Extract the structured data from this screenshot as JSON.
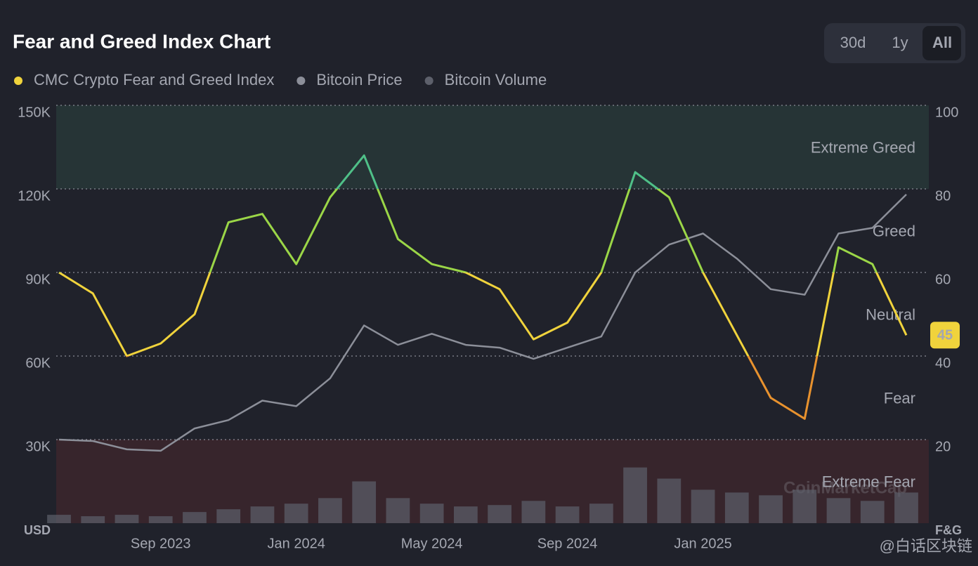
{
  "chart_data": {
    "type": "line",
    "title": "Fear and Greed Index Chart",
    "range_buttons": [
      "30d",
      "1y",
      "All"
    ],
    "active_range": "All",
    "x": [
      "2023-06",
      "2023-07",
      "2023-08",
      "2023-09",
      "2023-10",
      "2023-11",
      "2023-12",
      "2024-01",
      "2024-02",
      "2024-03",
      "2024-04",
      "2024-05",
      "2024-06",
      "2024-07",
      "2024-08",
      "2024-09",
      "2024-10",
      "2024-11",
      "2024-12",
      "2025-01",
      "2025-02",
      "2025-03",
      "2025-04",
      "2025-05",
      "2025-06",
      "2025-07"
    ],
    "xlim": [
      "2023-06",
      "2025-07"
    ],
    "xticks": [
      {
        "value": "2023-09",
        "label": "Sep 2023"
      },
      {
        "value": "2024-01",
        "label": "Jan 2024"
      },
      {
        "value": "2024-05",
        "label": "May 2024"
      },
      {
        "value": "2024-09",
        "label": "Sep 2024"
      },
      {
        "value": "2025-01",
        "label": "Jan 2025"
      }
    ],
    "ylabel": "USD",
    "y2label": "F&G",
    "ylim": [
      0,
      150000
    ],
    "yticks": [
      {
        "value": 30000,
        "label": "30K"
      },
      {
        "value": 60000,
        "label": "60K"
      },
      {
        "value": 90000,
        "label": "90K"
      },
      {
        "value": 120000,
        "label": "120K"
      },
      {
        "value": 150000,
        "label": "150K"
      }
    ],
    "y2lim": [
      0,
      100
    ],
    "y2ticks": [
      20,
      40,
      60,
      80,
      100
    ],
    "grid": true,
    "zones": [
      {
        "label": "Extreme Fear",
        "from": 0,
        "to": 20,
        "color": "#e0413d"
      },
      {
        "label": "Fear",
        "from": 20,
        "to": 40,
        "color": "#e8922e"
      },
      {
        "label": "Neutral",
        "from": 40,
        "to": 60,
        "color": "#f0d33c"
      },
      {
        "label": "Greed",
        "from": 60,
        "to": 80,
        "color": "#9bd647"
      },
      {
        "label": "Extreme Greed",
        "from": 80,
        "to": 100,
        "color": "#4fc088"
      }
    ],
    "series": [
      {
        "name": "CMC Crypto Fear and Greed Index",
        "color": "#f0d33c",
        "axis": "y2",
        "values": [
          60,
          55,
          40,
          43,
          50,
          72,
          74,
          62,
          78,
          88,
          68,
          62,
          60,
          56,
          44,
          48,
          60,
          84,
          78,
          60,
          45,
          30,
          25,
          66,
          62,
          45
        ]
      },
      {
        "name": "Bitcoin Price",
        "color": "#8c8f99",
        "values": [
          30000,
          29500,
          26500,
          26000,
          34000,
          37000,
          44000,
          42000,
          52000,
          71000,
          64000,
          68000,
          64000,
          63000,
          59000,
          63000,
          67000,
          90000,
          100000,
          104000,
          95000,
          84000,
          82000,
          104000,
          106000,
          118000
        ]
      },
      {
        "name": "Bitcoin Volume",
        "color": "#5d606b",
        "kind": "bar",
        "values": [
          3000,
          2500,
          3000,
          2500,
          4000,
          5000,
          6000,
          7000,
          9000,
          15000,
          9000,
          7000,
          6000,
          6500,
          8000,
          6000,
          7000,
          20000,
          16000,
          12000,
          11000,
          10000,
          12000,
          9000,
          8000,
          11000
        ]
      }
    ],
    "legend": "top-left",
    "watermark": "@白话区块链",
    "brand": "CoinMarketCap"
  }
}
